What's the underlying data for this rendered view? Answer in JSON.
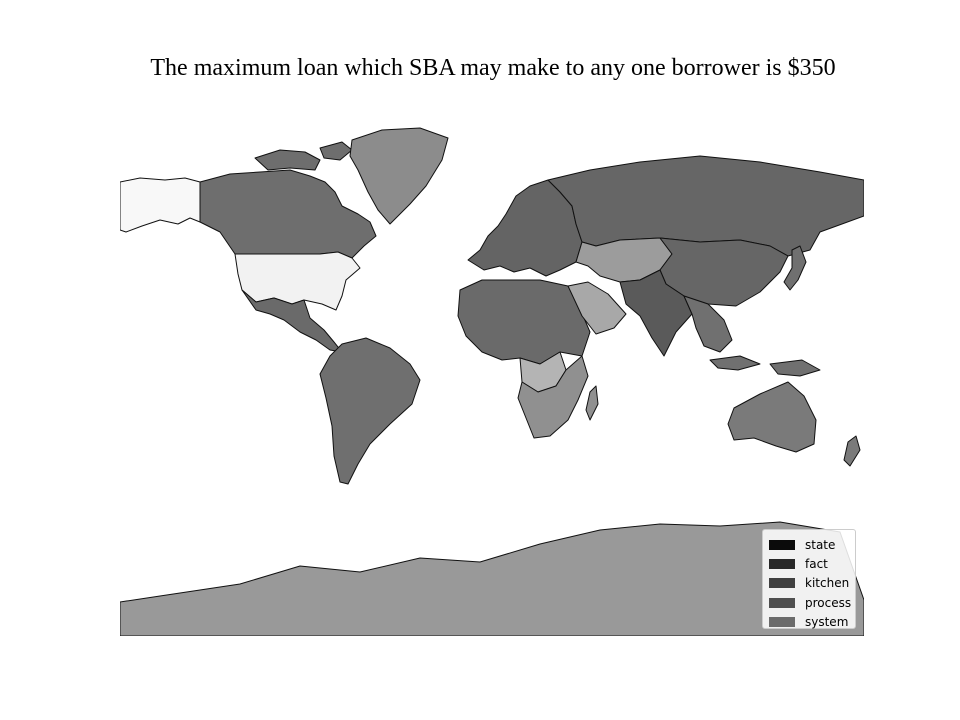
{
  "title": "The maximum loan which SBA may make to any one borrower is $350",
  "map": {
    "projection": "mercator",
    "background": "#ffffff",
    "ocean_color": "#ffffff",
    "border_color": "#111111",
    "regions": [
      {
        "name": "Alaska",
        "fill": "#f8f8f8"
      },
      {
        "name": "Canada",
        "fill": "#6e6e6e"
      },
      {
        "name": "Greenland",
        "fill": "#8c8c8c"
      },
      {
        "name": "United States",
        "fill": "#f2f2f2"
      },
      {
        "name": "Mexico & Central America",
        "fill": "#6a6a6a"
      },
      {
        "name": "South America",
        "fill": "#6f6f6f"
      },
      {
        "name": "Europe",
        "fill": "#646464"
      },
      {
        "name": "North Africa",
        "fill": "#6a6a6a"
      },
      {
        "name": "Central Africa",
        "fill": "#b4b4b4"
      },
      {
        "name": "Southern Africa",
        "fill": "#909090"
      },
      {
        "name": "Arabian Peninsula",
        "fill": "#a8a8a8"
      },
      {
        "name": "Russia",
        "fill": "#666666"
      },
      {
        "name": "Central Asia",
        "fill": "#9c9c9c"
      },
      {
        "name": "China",
        "fill": "#666666"
      },
      {
        "name": "South Asia",
        "fill": "#5a5a5a"
      },
      {
        "name": "Southeast Asia",
        "fill": "#707070"
      },
      {
        "name": "Australia",
        "fill": "#7a7a7a"
      },
      {
        "name": "Antarctica",
        "fill": "#999999"
      }
    ]
  },
  "legend": {
    "placement": "lower-right",
    "items": [
      {
        "label": "state",
        "color": "#0b0b0b"
      },
      {
        "label": "fact",
        "color": "#282828"
      },
      {
        "label": "kitchen",
        "color": "#404040"
      },
      {
        "label": "process",
        "color": "#4f4f4f"
      },
      {
        "label": "system",
        "color": "#6b6b6b"
      }
    ]
  }
}
